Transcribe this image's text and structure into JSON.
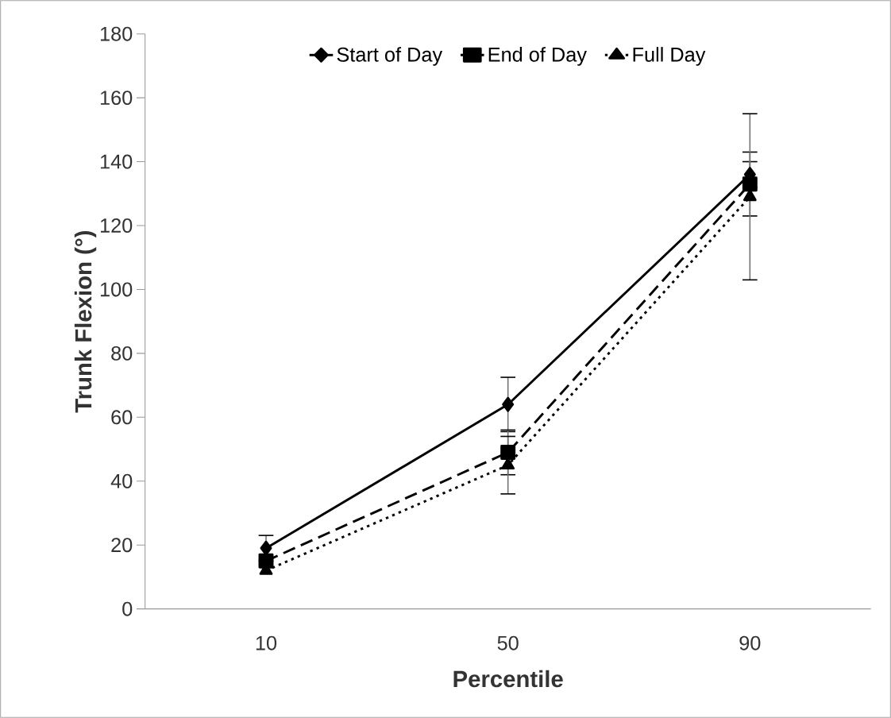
{
  "chart_data": {
    "type": "line",
    "xlabel": "Percentile",
    "ylabel": "Trunk Flexion (°)",
    "categories": [
      "10",
      "50",
      "90"
    ],
    "ylim": [
      0,
      180
    ],
    "yticks": [
      0,
      20,
      40,
      60,
      80,
      100,
      120,
      140,
      160,
      180
    ],
    "grid": false,
    "legend": "top",
    "series": [
      {
        "name": "Start of Day",
        "color": "#000000",
        "marker": "diamond",
        "line_style": "solid",
        "values": [
          19,
          64,
          136
        ],
        "errors": [
          4,
          8.5,
          4
        ]
      },
      {
        "name": "End of Day",
        "color": "#000000",
        "marker": "square",
        "line_style": "dashed",
        "values": [
          15,
          49,
          133
        ],
        "errors": [
          null,
          7,
          10
        ]
      },
      {
        "name": "Full Day",
        "color": "#000000",
        "marker": "triangle",
        "line_style": "dotted",
        "values": [
          12,
          45,
          129
        ],
        "errors": [
          null,
          9,
          26
        ]
      }
    ]
  }
}
